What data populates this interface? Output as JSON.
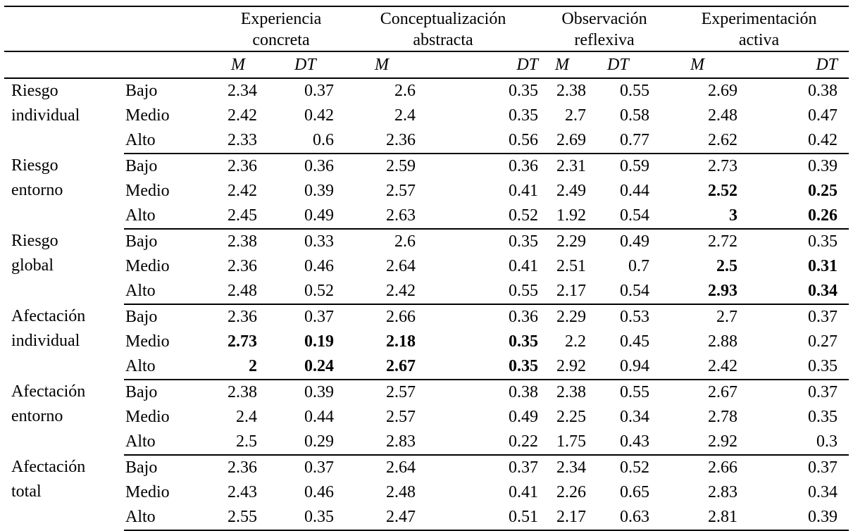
{
  "table": {
    "column_groups": [
      {
        "line1": "Experiencia",
        "line2": "concreta"
      },
      {
        "line1": "Conceptualización",
        "line2": "abstracta"
      },
      {
        "line1": "Observación",
        "line2": "reflexiva"
      },
      {
        "line1": "Experimentación",
        "line2": "activa"
      }
    ],
    "subheaders": [
      "M",
      "DT",
      "M",
      "DT",
      "M",
      "DT",
      "M",
      "DT"
    ],
    "groups": [
      {
        "label_line1": "Riesgo",
        "label_line2": "individual",
        "rows": [
          {
            "level": "Bajo",
            "values": [
              "2.34",
              "0.37",
              "2.6",
              "0.35",
              "2.38",
              "0.55",
              "2.69",
              "0.38"
            ],
            "bold": [
              false,
              false,
              false,
              false,
              false,
              false,
              false,
              false
            ]
          },
          {
            "level": "Medio",
            "values": [
              "2.42",
              "0.42",
              "2.4",
              "0.35",
              "2.7",
              "0.58",
              "2.48",
              "0.47"
            ],
            "bold": [
              false,
              false,
              false,
              false,
              false,
              false,
              false,
              false
            ]
          },
          {
            "level": "Alto",
            "values": [
              "2.33",
              "0.6",
              "2.36",
              "0.56",
              "2.69",
              "0.77",
              "2.62",
              "0.42"
            ],
            "bold": [
              false,
              false,
              false,
              false,
              false,
              false,
              false,
              false
            ]
          }
        ]
      },
      {
        "label_line1": "Riesgo",
        "label_line2": "entorno",
        "rows": [
          {
            "level": "Bajo",
            "values": [
              "2.36",
              "0.36",
              "2.59",
              "0.36",
              "2.31",
              "0.59",
              "2.73",
              "0.39"
            ],
            "bold": [
              false,
              false,
              false,
              false,
              false,
              false,
              false,
              false
            ]
          },
          {
            "level": "Medio",
            "values": [
              "2.42",
              "0.39",
              "2.57",
              "0.41",
              "2.49",
              "0.44",
              "2.52",
              "0.25"
            ],
            "bold": [
              false,
              false,
              false,
              false,
              false,
              false,
              true,
              true
            ]
          },
          {
            "level": "Alto",
            "values": [
              "2.45",
              "0.49",
              "2.63",
              "0.52",
              "1.92",
              "0.54",
              "3",
              "0.26"
            ],
            "bold": [
              false,
              false,
              false,
              false,
              false,
              false,
              true,
              true
            ]
          }
        ]
      },
      {
        "label_line1": "Riesgo",
        "label_line2": "global",
        "rows": [
          {
            "level": "Bajo",
            "values": [
              "2.38",
              "0.33",
              "2.6",
              "0.35",
              "2.29",
              "0.49",
              "2.72",
              "0.35"
            ],
            "bold": [
              false,
              false,
              false,
              false,
              false,
              false,
              false,
              false
            ]
          },
          {
            "level": "Medio",
            "values": [
              "2.36",
              "0.46",
              "2.64",
              "0.41",
              "2.51",
              "0.7",
              "2.5",
              "0.31"
            ],
            "bold": [
              false,
              false,
              false,
              false,
              false,
              false,
              true,
              true
            ]
          },
          {
            "level": "Alto",
            "values": [
              "2.48",
              "0.52",
              "2.42",
              "0.55",
              "2.17",
              "0.54",
              "2.93",
              "0.34"
            ],
            "bold": [
              false,
              false,
              false,
              false,
              false,
              false,
              true,
              true
            ]
          }
        ]
      },
      {
        "label_line1": "Afectación",
        "label_line2": "individual",
        "rows": [
          {
            "level": "Bajo",
            "values": [
              "2.36",
              "0.37",
              "2.66",
              "0.36",
              "2.29",
              "0.53",
              "2.7",
              "0.37"
            ],
            "bold": [
              false,
              false,
              false,
              false,
              false,
              false,
              false,
              false
            ]
          },
          {
            "level": "Medio",
            "values": [
              "2.73",
              "0.19",
              "2.18",
              "0.35",
              "2.2",
              "0.45",
              "2.88",
              "0.27"
            ],
            "bold": [
              true,
              true,
              true,
              true,
              false,
              false,
              false,
              false
            ]
          },
          {
            "level": "Alto",
            "values": [
              "2",
              "0.24",
              "2.67",
              "0.35",
              "2.92",
              "0.94",
              "2.42",
              "0.35"
            ],
            "bold": [
              true,
              true,
              true,
              true,
              false,
              false,
              false,
              false
            ]
          }
        ]
      },
      {
        "label_line1": "Afectación",
        "label_line2": "entorno",
        "rows": [
          {
            "level": "Bajo",
            "values": [
              "2.38",
              "0.39",
              "2.57",
              "0.38",
              "2.38",
              "0.55",
              "2.67",
              "0.37"
            ],
            "bold": [
              false,
              false,
              false,
              false,
              false,
              false,
              false,
              false
            ]
          },
          {
            "level": "Medio",
            "values": [
              "2.4",
              "0.44",
              "2.57",
              "0.49",
              "2.25",
              "0.34",
              "2.78",
              "0.35"
            ],
            "bold": [
              false,
              false,
              false,
              false,
              false,
              false,
              false,
              false
            ]
          },
          {
            "level": "Alto",
            "values": [
              "2.5",
              "0.29",
              "2.83",
              "0.22",
              "1.75",
              "0.43",
              "2.92",
              "0.3"
            ],
            "bold": [
              false,
              false,
              false,
              false,
              false,
              false,
              false,
              false
            ]
          }
        ]
      },
      {
        "label_line1": "Afectación",
        "label_line2": "total",
        "rows": [
          {
            "level": "Bajo",
            "values": [
              "2.36",
              "0.37",
              "2.64",
              "0.37",
              "2.34",
              "0.52",
              "2.66",
              "0.37"
            ],
            "bold": [
              false,
              false,
              false,
              false,
              false,
              false,
              false,
              false
            ]
          },
          {
            "level": "Medio",
            "values": [
              "2.43",
              "0.46",
              "2.48",
              "0.41",
              "2.26",
              "0.65",
              "2.83",
              "0.34"
            ],
            "bold": [
              false,
              false,
              false,
              false,
              false,
              false,
              false,
              false
            ]
          },
          {
            "level": "Alto",
            "values": [
              "2.55",
              "0.35",
              "2.47",
              "0.51",
              "2.17",
              "0.63",
              "2.81",
              "0.39"
            ],
            "bold": [
              false,
              false,
              false,
              false,
              false,
              false,
              false,
              false
            ]
          }
        ]
      }
    ]
  }
}
